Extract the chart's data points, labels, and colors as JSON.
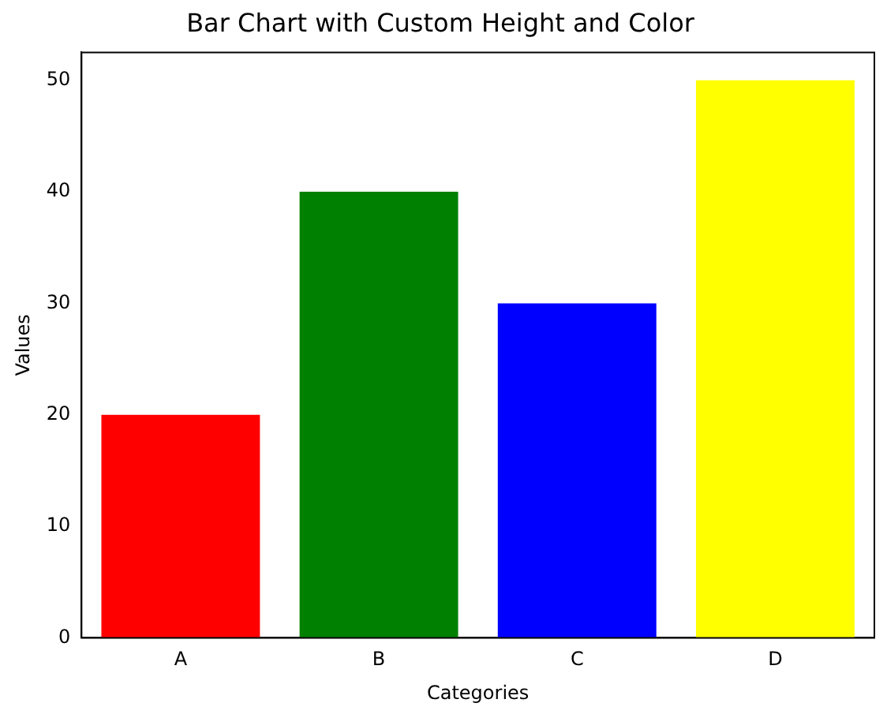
{
  "chart_data": {
    "type": "bar",
    "title": "Bar Chart with Custom Height and Color",
    "xlabel": "Categories",
    "ylabel": "Values",
    "categories": [
      "A",
      "B",
      "C",
      "D"
    ],
    "values": [
      20,
      40,
      30,
      50
    ],
    "colors": [
      "#ff0000",
      "#008000",
      "#0000ff",
      "#ffff00"
    ],
    "ylim": [
      0,
      52.5
    ],
    "yticks": [
      0,
      10,
      20,
      30,
      40,
      50
    ],
    "grid": false,
    "legend": false
  }
}
